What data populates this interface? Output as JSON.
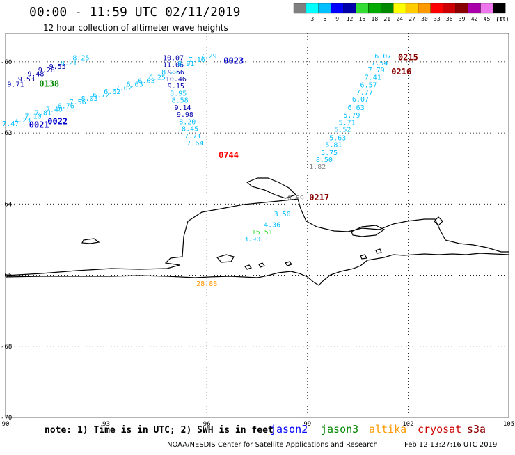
{
  "title": "00:00 - 11:59 UTC 02/11/2019",
  "subtitle": "12 hour collection of altimeter wave heights",
  "note": "note: 1) Time is in UTC; 2) SWH is in feet",
  "credit": "NOAA/NESDIS Center for Satellite Applications and Research",
  "generated": "Feb 12 13:27:16 UTC 2019",
  "satellites": [
    {
      "name": "jason2",
      "color": "#0000ff"
    },
    {
      "name": "jason3",
      "color": "#008800"
    },
    {
      "name": "altika",
      "color": "#ff9900"
    },
    {
      "name": "cryosat",
      "color": "#cc0000"
    },
    {
      "name": "s3a",
      "color": "#880000"
    }
  ],
  "chart_data": {
    "type": "scatter",
    "map": "altimeter significant wave height track plot",
    "xlim": [
      90,
      105
    ],
    "ylim": [
      -70,
      -59.2
    ],
    "xticks": [
      "90",
      "93",
      "96",
      "99",
      "102",
      "105"
    ],
    "yticks": [
      "-60",
      "-62",
      "-64",
      "-66",
      "-68",
      "-70"
    ],
    "grid": true,
    "legend": {
      "position": "top-right",
      "unit": "(ft)",
      "bins": [
        {
          "label": "",
          "color": "#808080"
        },
        {
          "label": "3",
          "color": "#00ffff"
        },
        {
          "label": "6",
          "color": "#00bfff"
        },
        {
          "label": "9",
          "color": "#0000ff"
        },
        {
          "label": "12",
          "color": "#0000aa"
        },
        {
          "label": "15",
          "color": "#33dd33"
        },
        {
          "label": "18",
          "color": "#00aa00"
        },
        {
          "label": "21",
          "color": "#008800"
        },
        {
          "label": "24",
          "color": "#ffff00"
        },
        {
          "label": "27",
          "color": "#ffcc00"
        },
        {
          "label": "30",
          "color": "#ff9900"
        },
        {
          "label": "33",
          "color": "#ff0000"
        },
        {
          "label": "36",
          "color": "#cc0000"
        },
        {
          "label": "39",
          "color": "#880000"
        },
        {
          "label": "42",
          "color": "#aa00aa"
        },
        {
          "label": "45",
          "color": "#ee77ee"
        },
        {
          "label": "70",
          "color": "#000000"
        }
      ]
    },
    "tracks": [
      {
        "id": "0023",
        "color": "#0000cc",
        "label_x": 96.5,
        "label_y": -60.05
      },
      {
        "id": "0138",
        "color": "#008800",
        "label_x": 91.0,
        "label_y": -60.7
      },
      {
        "id": "0021",
        "color": "#0000cc",
        "label_x": 90.7,
        "label_y": -61.85
      },
      {
        "id": "0022",
        "color": "#0000cc",
        "label_x": 91.25,
        "label_y": -61.75
      },
      {
        "id": "0744",
        "color": "#ff0000",
        "label_x": 96.35,
        "label_y": -62.7
      },
      {
        "id": "0217",
        "color": "#880000",
        "label_x": 99.05,
        "label_y": -63.9
      },
      {
        "id": "0215",
        "color": "#880000",
        "label_x": 101.7,
        "label_y": -59.95
      },
      {
        "id": "0216",
        "color": "#880000",
        "label_x": 101.5,
        "label_y": -60.35
      }
    ],
    "points": [
      {
        "x": 90.3,
        "y": -60.7,
        "v": "9.71",
        "c": "#0000aa"
      },
      {
        "x": 90.62,
        "y": -60.55,
        "v": "9.53",
        "c": "#0000aa"
      },
      {
        "x": 90.9,
        "y": -60.4,
        "v": "9.48",
        "c": "#0000aa"
      },
      {
        "x": 91.22,
        "y": -60.3,
        "v": "9.28",
        "c": "#0000aa"
      },
      {
        "x": 91.55,
        "y": -60.2,
        "v": "9.55",
        "c": "#0000aa"
      },
      {
        "x": 91.88,
        "y": -60.1,
        "v": "8.21",
        "c": "#00bfff"
      },
      {
        "x": 92.25,
        "y": -59.95,
        "v": "8.25",
        "c": "#00bfff"
      },
      {
        "x": 90.15,
        "y": -61.8,
        "v": "7.47",
        "c": "#00bfff"
      },
      {
        "x": 90.5,
        "y": -61.7,
        "v": "7.23",
        "c": "#00bfff"
      },
      {
        "x": 90.82,
        "y": -61.6,
        "v": "7.10",
        "c": "#00bfff"
      },
      {
        "x": 91.12,
        "y": -61.5,
        "v": "7.81",
        "c": "#00bfff"
      },
      {
        "x": 91.45,
        "y": -61.4,
        "v": "7.48",
        "c": "#00bfff"
      },
      {
        "x": 91.8,
        "y": -61.3,
        "v": "6.76",
        "c": "#00bfff"
      },
      {
        "x": 92.15,
        "y": -61.2,
        "v": "7.56",
        "c": "#00bfff"
      },
      {
        "x": 92.5,
        "y": -61.1,
        "v": "8.03",
        "c": "#00bfff"
      },
      {
        "x": 92.85,
        "y": -61.0,
        "v": "6.72",
        "c": "#00bfff"
      },
      {
        "x": 93.18,
        "y": -60.9,
        "v": "6.62",
        "c": "#00bfff"
      },
      {
        "x": 93.52,
        "y": -60.8,
        "v": "7.02",
        "c": "#00bfff"
      },
      {
        "x": 93.85,
        "y": -60.7,
        "v": "6.63",
        "c": "#00bfff"
      },
      {
        "x": 94.2,
        "y": -60.6,
        "v": "6.63",
        "c": "#00bfff"
      },
      {
        "x": 94.52,
        "y": -60.5,
        "v": "6.25",
        "c": "#00bfff"
      },
      {
        "x": 95.0,
        "y": -59.95,
        "v": "10.07",
        "c": "#0000aa"
      },
      {
        "x": 95.0,
        "y": -60.15,
        "v": "11.06",
        "c": "#0000aa"
      },
      {
        "x": 95.38,
        "y": -60.12,
        "v": "8.91",
        "c": "#00bfff"
      },
      {
        "x": 95.7,
        "y": -60.0,
        "v": "7.16",
        "c": "#00bfff"
      },
      {
        "x": 96.05,
        "y": -59.9,
        "v": "7.29",
        "c": "#00bfff"
      },
      {
        "x": 94.9,
        "y": -60.35,
        "v": "8.29",
        "c": "#00bfff"
      },
      {
        "x": 95.08,
        "y": -60.35,
        "v": "9.56",
        "c": "#0000aa"
      },
      {
        "x": 95.08,
        "y": -60.55,
        "v": "10.46",
        "c": "#0000aa"
      },
      {
        "x": 95.08,
        "y": -60.75,
        "v": "9.15",
        "c": "#0000aa"
      },
      {
        "x": 95.15,
        "y": -60.95,
        "v": "8.95",
        "c": "#00bfff"
      },
      {
        "x": 95.2,
        "y": -61.15,
        "v": "8.58",
        "c": "#00bfff"
      },
      {
        "x": 95.28,
        "y": -61.35,
        "v": "9.14",
        "c": "#0000aa"
      },
      {
        "x": 95.35,
        "y": -61.55,
        "v": "9.98",
        "c": "#0000aa"
      },
      {
        "x": 95.42,
        "y": -61.75,
        "v": "8.20",
        "c": "#00bfff"
      },
      {
        "x": 95.5,
        "y": -61.95,
        "v": "8.45",
        "c": "#00bfff"
      },
      {
        "x": 95.58,
        "y": -62.15,
        "v": "7.71",
        "c": "#00bfff"
      },
      {
        "x": 95.65,
        "y": -62.35,
        "v": "7.64",
        "c": "#00bfff"
      },
      {
        "x": 101.25,
        "y": -59.9,
        "v": "6.07",
        "c": "#00bfff"
      },
      {
        "x": 101.15,
        "y": -60.1,
        "v": "7.54",
        "c": "#00bfff"
      },
      {
        "x": 101.05,
        "y": -60.3,
        "v": "7.79",
        "c": "#00bfff"
      },
      {
        "x": 100.95,
        "y": -60.5,
        "v": "7.41",
        "c": "#00bfff"
      },
      {
        "x": 100.82,
        "y": -60.72,
        "v": "6.57",
        "c": "#00bfff"
      },
      {
        "x": 100.7,
        "y": -60.92,
        "v": "7.77",
        "c": "#00bfff"
      },
      {
        "x": 100.58,
        "y": -61.12,
        "v": "6.07",
        "c": "#00bfff"
      },
      {
        "x": 100.45,
        "y": -61.35,
        "v": "6.63",
        "c": "#00bfff"
      },
      {
        "x": 100.32,
        "y": -61.57,
        "v": "5.79",
        "c": "#00bfff"
      },
      {
        "x": 100.18,
        "y": -61.77,
        "v": "5.71",
        "c": "#00bfff"
      },
      {
        "x": 100.05,
        "y": -61.97,
        "v": "5.52",
        "c": "#00bfff"
      },
      {
        "x": 99.9,
        "y": -62.2,
        "v": "5.63",
        "c": "#00bfff"
      },
      {
        "x": 99.78,
        "y": -62.4,
        "v": "5.81",
        "c": "#00bfff"
      },
      {
        "x": 99.65,
        "y": -62.62,
        "v": "5.75",
        "c": "#00bfff"
      },
      {
        "x": 99.5,
        "y": -62.82,
        "v": "8.50",
        "c": "#00bfff"
      },
      {
        "x": 99.3,
        "y": -63.02,
        "v": "1.82",
        "c": "#808080"
      },
      {
        "x": 98.65,
        "y": -63.9,
        "v": "0.59",
        "c": "#808080"
      },
      {
        "x": 98.25,
        "y": -64.35,
        "v": "3.50",
        "c": "#00bfff"
      },
      {
        "x": 97.95,
        "y": -64.65,
        "v": "4.36",
        "c": "#00bfff"
      },
      {
        "x": 97.65,
        "y": -64.85,
        "v": "15.51",
        "c": "#33dd33"
      },
      {
        "x": 97.35,
        "y": -65.05,
        "v": "3.90",
        "c": "#00bfff"
      },
      {
        "x": 96.0,
        "y": -66.3,
        "v": "28.88",
        "c": "#ff9900"
      }
    ]
  }
}
